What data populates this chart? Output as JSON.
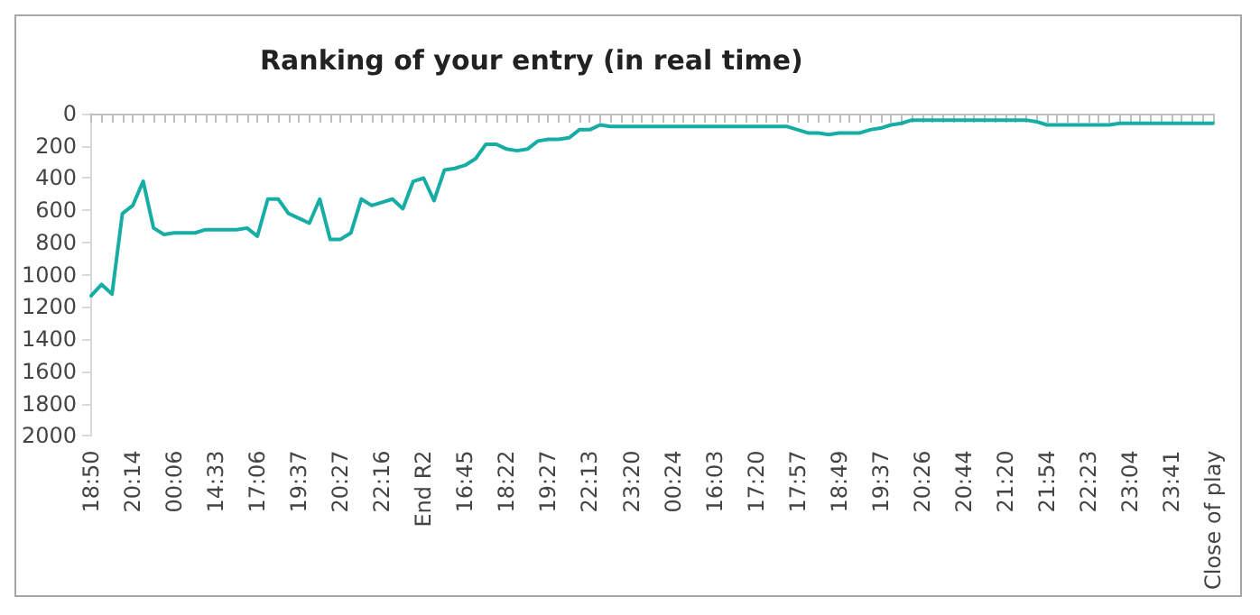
{
  "chart_data": {
    "type": "line",
    "title": "Ranking of your entry (in real time)",
    "categories": [
      "18:50",
      null,
      null,
      null,
      "20:14",
      null,
      null,
      null,
      "00:06",
      null,
      null,
      null,
      "14:33",
      null,
      null,
      null,
      "17:06",
      null,
      null,
      null,
      "19:37",
      null,
      null,
      null,
      "20:27",
      null,
      null,
      null,
      "22:16",
      null,
      null,
      null,
      "End R2",
      null,
      null,
      null,
      "16:45",
      null,
      null,
      null,
      "18:22",
      null,
      null,
      null,
      "19:27",
      null,
      null,
      null,
      "22:13",
      null,
      null,
      null,
      "23:20",
      null,
      null,
      null,
      "00:24",
      null,
      null,
      null,
      "16:03",
      null,
      null,
      null,
      "17:20",
      null,
      null,
      null,
      "17:57",
      null,
      null,
      null,
      "18:49",
      null,
      null,
      null,
      "19:37",
      null,
      null,
      null,
      "20:26",
      null,
      null,
      null,
      "20:44",
      null,
      null,
      null,
      "21:20",
      null,
      null,
      null,
      "21:54",
      null,
      null,
      null,
      "22:23",
      null,
      null,
      null,
      "23:04",
      null,
      null,
      null,
      "23:41",
      null,
      null,
      null,
      "Close of play"
    ],
    "series": [
      {
        "color": "#17ada5",
        "values": [
          1130,
          1060,
          1120,
          620,
          570,
          420,
          710,
          750,
          740,
          740,
          740,
          720,
          720,
          720,
          720,
          710,
          760,
          530,
          530,
          620,
          650,
          680,
          530,
          780,
          780,
          740,
          530,
          570,
          550,
          530,
          590,
          420,
          400,
          540,
          350,
          340,
          320,
          280,
          190,
          190,
          220,
          230,
          220,
          170,
          160,
          160,
          150,
          100,
          100,
          70,
          80,
          80,
          80,
          80,
          80,
          80,
          80,
          80,
          80,
          80,
          80,
          80,
          80,
          80,
          80,
          80,
          80,
          80,
          100,
          120,
          120,
          130,
          120,
          120,
          120,
          100,
          90,
          70,
          60,
          40,
          40,
          40,
          40,
          40,
          40,
          40,
          40,
          40,
          40,
          40,
          40,
          50,
          70,
          70,
          70,
          70,
          70,
          70,
          70,
          60,
          60,
          60,
          60,
          60,
          60,
          60,
          60,
          60,
          60
        ]
      }
    ],
    "ylim": [
      2000,
      0
    ],
    "yticks": [
      0,
      200,
      400,
      600,
      800,
      1000,
      1200,
      1400,
      1600,
      1800,
      2000
    ],
    "grid": false,
    "marker": "none",
    "line_style": "solid"
  }
}
